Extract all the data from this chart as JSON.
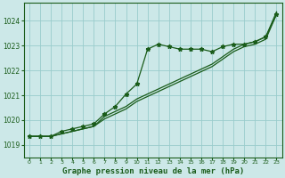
{
  "title": "Graphe pression niveau de la mer (hPa)",
  "bg_color": "#cce8e8",
  "grid_color": "#99cccc",
  "line_color": "#1a5c1a",
  "xlim": [
    -0.5,
    23.5
  ],
  "ylim": [
    1018.5,
    1024.7
  ],
  "yticks": [
    1019,
    1020,
    1021,
    1022,
    1023,
    1024
  ],
  "xticks": [
    0,
    1,
    2,
    3,
    4,
    5,
    6,
    7,
    8,
    9,
    10,
    11,
    12,
    13,
    14,
    15,
    16,
    17,
    18,
    19,
    20,
    21,
    22,
    23
  ],
  "series1_x": [
    0,
    1,
    2,
    3,
    4,
    5,
    6,
    7,
    8,
    9,
    10,
    11,
    12,
    13,
    14,
    15,
    16,
    17,
    18,
    19,
    20,
    21,
    22,
    23
  ],
  "series1_y": [
    1019.35,
    1019.35,
    1019.35,
    1019.55,
    1019.65,
    1019.75,
    1019.85,
    1020.25,
    1020.55,
    1021.05,
    1021.45,
    1022.85,
    1023.05,
    1022.95,
    1022.85,
    1022.85,
    1022.85,
    1022.75,
    1022.95,
    1023.05,
    1023.05,
    1023.15,
    1023.35,
    1024.25
  ],
  "series2_x": [
    0,
    1,
    2,
    3,
    4,
    5,
    6,
    7,
    8,
    9,
    10,
    11,
    12,
    13,
    14,
    15,
    16,
    17,
    18,
    19,
    20,
    21,
    22,
    23
  ],
  "series2_y": [
    1019.35,
    1019.35,
    1019.35,
    1019.45,
    1019.55,
    1019.65,
    1019.75,
    1020.05,
    1020.25,
    1020.45,
    1020.75,
    1020.95,
    1021.15,
    1021.35,
    1021.55,
    1021.75,
    1021.95,
    1022.15,
    1022.45,
    1022.75,
    1022.95,
    1023.05,
    1023.25,
    1024.25
  ],
  "series3_x": [
    0,
    1,
    2,
    3,
    4,
    5,
    6,
    7,
    8,
    9,
    10,
    11,
    12,
    13,
    14,
    15,
    16,
    17,
    18,
    19,
    20,
    21,
    22,
    23
  ],
  "series3_y": [
    1019.35,
    1019.35,
    1019.35,
    1019.45,
    1019.55,
    1019.65,
    1019.75,
    1020.15,
    1020.35,
    1020.55,
    1020.85,
    1021.05,
    1021.25,
    1021.45,
    1021.65,
    1021.85,
    1022.05,
    1022.25,
    1022.55,
    1022.85,
    1023.05,
    1023.15,
    1023.35,
    1024.35
  ]
}
